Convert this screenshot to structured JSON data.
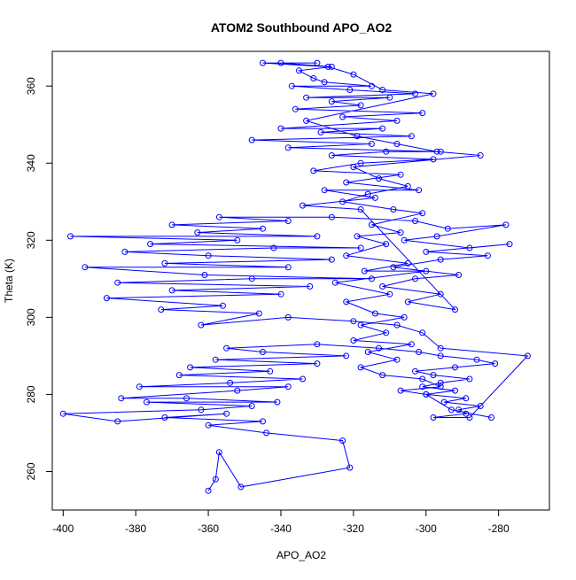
{
  "colors": {
    "series": "#0000ff",
    "axis": "#000000",
    "background": "#ffffff"
  },
  "chart_data": {
    "type": "scatter",
    "title": "ATOM2 Southbound APO_AO2",
    "xlabel": "APO_AO2",
    "ylabel": "Theta (K)",
    "xlim": [
      -403,
      -266
    ],
    "ylim": [
      250,
      369
    ],
    "xticks": [
      -400,
      -380,
      -360,
      -340,
      -320,
      -300,
      -280
    ],
    "yticks": [
      260,
      280,
      300,
      320,
      340,
      360
    ],
    "grid": false,
    "marker": "open-circle",
    "connected": true,
    "series": [
      {
        "points": [
          [
            -360,
            255
          ],
          [
            -358,
            258
          ],
          [
            -357,
            265
          ],
          [
            -351,
            256
          ],
          [
            -321,
            261
          ],
          [
            -323,
            268
          ],
          [
            -344,
            270
          ],
          [
            -360,
            272
          ],
          [
            -345,
            273
          ],
          [
            -372,
            274
          ],
          [
            -355,
            275
          ],
          [
            -385,
            273
          ],
          [
            -400,
            275
          ],
          [
            -362,
            276
          ],
          [
            -348,
            277
          ],
          [
            -377,
            278
          ],
          [
            -341,
            278
          ],
          [
            -366,
            279
          ],
          [
            -384,
            279
          ],
          [
            -352,
            281
          ],
          [
            -338,
            282
          ],
          [
            -379,
            282
          ],
          [
            -354,
            283
          ],
          [
            -334,
            284
          ],
          [
            -368,
            285
          ],
          [
            -343,
            286
          ],
          [
            -365,
            287
          ],
          [
            -330,
            288
          ],
          [
            -358,
            289
          ],
          [
            -322,
            290
          ],
          [
            -345,
            291
          ],
          [
            -355,
            292
          ],
          [
            -330,
            293
          ],
          [
            -313,
            292
          ],
          [
            -302,
            291
          ],
          [
            -296,
            290
          ],
          [
            -286,
            289
          ],
          [
            -281,
            288
          ],
          [
            -292,
            287
          ],
          [
            -303,
            286
          ],
          [
            -298,
            285
          ],
          [
            -288,
            284
          ],
          [
            -296,
            283
          ],
          [
            -301,
            282
          ],
          [
            -292,
            281
          ],
          [
            -300,
            280
          ],
          [
            -289,
            279
          ],
          [
            -295,
            278
          ],
          [
            -285,
            277
          ],
          [
            -291,
            276
          ],
          [
            -289,
            275
          ],
          [
            -298,
            274
          ],
          [
            -288,
            274
          ],
          [
            -272,
            290
          ],
          [
            -296,
            292
          ],
          [
            -301,
            296
          ],
          [
            -308,
            298
          ],
          [
            -320,
            299
          ],
          [
            -338,
            300
          ],
          [
            -362,
            298
          ],
          [
            -346,
            301
          ],
          [
            -373,
            302
          ],
          [
            -356,
            303
          ],
          [
            -388,
            305
          ],
          [
            -340,
            306
          ],
          [
            -370,
            307
          ],
          [
            -332,
            308
          ],
          [
            -385,
            309
          ],
          [
            -348,
            310
          ],
          [
            -315,
            310
          ],
          [
            -361,
            311
          ],
          [
            -394,
            313
          ],
          [
            -338,
            313
          ],
          [
            -372,
            314
          ],
          [
            -326,
            315
          ],
          [
            -360,
            316
          ],
          [
            -383,
            317
          ],
          [
            -342,
            318
          ],
          [
            -318,
            318
          ],
          [
            -376,
            319
          ],
          [
            -352,
            320
          ],
          [
            -398,
            321
          ],
          [
            -330,
            321
          ],
          [
            -363,
            322
          ],
          [
            -345,
            323
          ],
          [
            -370,
            324
          ],
          [
            -338,
            325
          ],
          [
            -357,
            326
          ],
          [
            -326,
            326
          ],
          [
            -303,
            325
          ],
          [
            -294,
            323
          ],
          [
            -278,
            324
          ],
          [
            -297,
            321
          ],
          [
            -306,
            320
          ],
          [
            -288,
            318
          ],
          [
            -277,
            319
          ],
          [
            -300,
            317
          ],
          [
            -283,
            316
          ],
          [
            -296,
            315
          ],
          [
            -309,
            313
          ],
          [
            -291,
            311
          ],
          [
            -303,
            310
          ],
          [
            -312,
            308
          ],
          [
            -296,
            306
          ],
          [
            -305,
            304
          ],
          [
            -292,
            302
          ],
          [
            -318,
            328
          ],
          [
            -334,
            329
          ],
          [
            -314,
            331
          ],
          [
            -328,
            333
          ],
          [
            -302,
            333
          ],
          [
            -322,
            335
          ],
          [
            -307,
            337
          ],
          [
            -331,
            338
          ],
          [
            -318,
            340
          ],
          [
            -298,
            341
          ],
          [
            -326,
            342
          ],
          [
            -311,
            343
          ],
          [
            -296,
            343
          ],
          [
            -338,
            344
          ],
          [
            -315,
            345
          ],
          [
            -348,
            346
          ],
          [
            -304,
            347
          ],
          [
            -329,
            348
          ],
          [
            -312,
            349
          ],
          [
            -340,
            349
          ],
          [
            -308,
            351
          ],
          [
            -323,
            352
          ],
          [
            -301,
            353
          ],
          [
            -336,
            354
          ],
          [
            -318,
            355
          ],
          [
            -326,
            356
          ],
          [
            -310,
            357
          ],
          [
            -333,
            357
          ],
          [
            -303,
            358
          ],
          [
            -321,
            359
          ],
          [
            -337,
            360
          ],
          [
            -315,
            360
          ],
          [
            -328,
            361
          ],
          [
            -331,
            362
          ],
          [
            -335,
            364
          ],
          [
            -326,
            365
          ],
          [
            -340,
            366
          ],
          [
            -330,
            366
          ],
          [
            -345,
            366
          ],
          [
            -327,
            365
          ],
          [
            -320,
            363
          ],
          [
            -312,
            359
          ],
          [
            -298,
            358
          ],
          [
            -333,
            351
          ],
          [
            -319,
            347
          ],
          [
            -308,
            345
          ],
          [
            -297,
            343
          ],
          [
            -285,
            342
          ],
          [
            -320,
            339
          ],
          [
            -313,
            336
          ],
          [
            -305,
            334
          ],
          [
            -316,
            332
          ],
          [
            -323,
            330
          ],
          [
            -309,
            328
          ],
          [
            -301,
            327
          ],
          [
            -315,
            324
          ],
          [
            -307,
            322
          ],
          [
            -319,
            321
          ],
          [
            -311,
            319
          ],
          [
            -322,
            316
          ],
          [
            -305,
            314
          ],
          [
            -317,
            312
          ],
          [
            -300,
            312
          ],
          [
            -325,
            309
          ],
          [
            -310,
            306
          ],
          [
            -322,
            304
          ],
          [
            -314,
            301
          ],
          [
            -306,
            300
          ],
          [
            -318,
            298
          ],
          [
            -311,
            296
          ],
          [
            -320,
            294
          ],
          [
            -304,
            293
          ],
          [
            -316,
            291
          ],
          [
            -308,
            289
          ],
          [
            -318,
            287
          ],
          [
            -312,
            285
          ],
          [
            -301,
            284
          ],
          [
            -296,
            282
          ],
          [
            -307,
            281
          ],
          [
            -300,
            280
          ],
          [
            -293,
            276
          ],
          [
            -282,
            274
          ]
        ]
      }
    ]
  }
}
